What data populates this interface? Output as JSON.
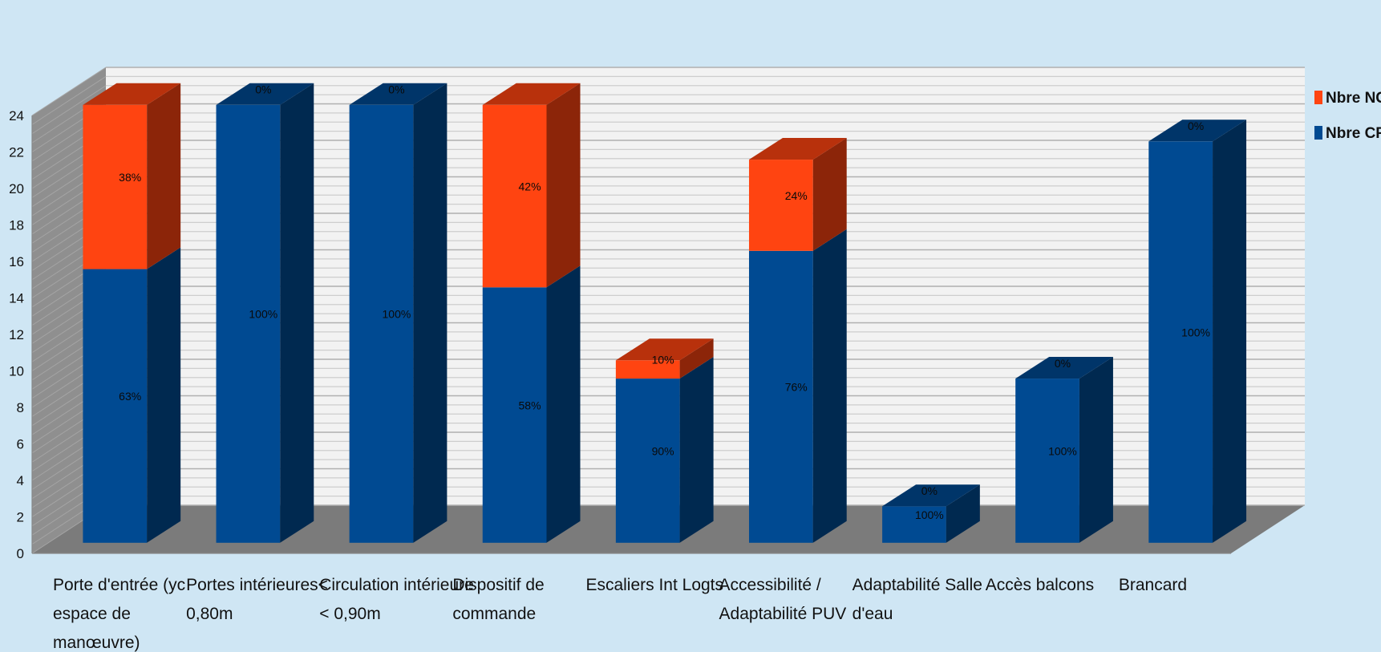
{
  "chart_data": {
    "type": "bar",
    "stacked": true,
    "three_d": true,
    "categories": [
      "Porte d'entrée (yc espace de manœuvre)",
      "Portes intérieures< 0,80m",
      "Circulation intérieure < 0,90m",
      "Dispositif de commande",
      "Escaliers Int Logts",
      "Accessibilité / Adaptabilité PUV",
      "Adaptabilité Salle d'eau",
      "Accès balcons",
      "Brancard"
    ],
    "category_lines": [
      [
        "Porte d'entrée (yc",
        "espace de",
        "manœuvre)"
      ],
      [
        "Portes intérieures<",
        "0,80m"
      ],
      [
        "Circulation intérieure",
        "< 0,90m"
      ],
      [
        "Dispositif de",
        "commande"
      ],
      [
        "Escaliers Int Logts"
      ],
      [
        "Accessibilité /",
        "Adaptabilité PUV"
      ],
      [
        "Adaptabilité Salle",
        "d'eau"
      ],
      [
        "Accès balcons"
      ],
      [
        "Brancard"
      ]
    ],
    "series": [
      {
        "name": "Nbre CF",
        "color": "#004a92",
        "values": [
          15,
          24,
          24,
          14,
          9,
          16,
          2,
          9,
          22
        ],
        "percent_labels": [
          "63%",
          "100%",
          "100%",
          "58%",
          "90%",
          "76%",
          "100%",
          "100%",
          "100%"
        ]
      },
      {
        "name": "Nbre NC",
        "color": "#ff4411",
        "values": [
          9,
          0,
          0,
          10,
          1,
          5,
          0,
          0,
          0
        ],
        "percent_labels": [
          "38%",
          "0%",
          "0%",
          "42%",
          "10%",
          "24%",
          "0%",
          "0%",
          "0%"
        ]
      }
    ],
    "legend_order": [
      "Nbre NC",
      "Nbre CF"
    ],
    "yticks": [
      0,
      2,
      4,
      6,
      8,
      10,
      12,
      14,
      16,
      18,
      20,
      22,
      24
    ],
    "ylim": [
      0,
      24
    ],
    "grid": true,
    "legend_position": "right",
    "xlabel": "",
    "ylabel": "",
    "title": ""
  }
}
